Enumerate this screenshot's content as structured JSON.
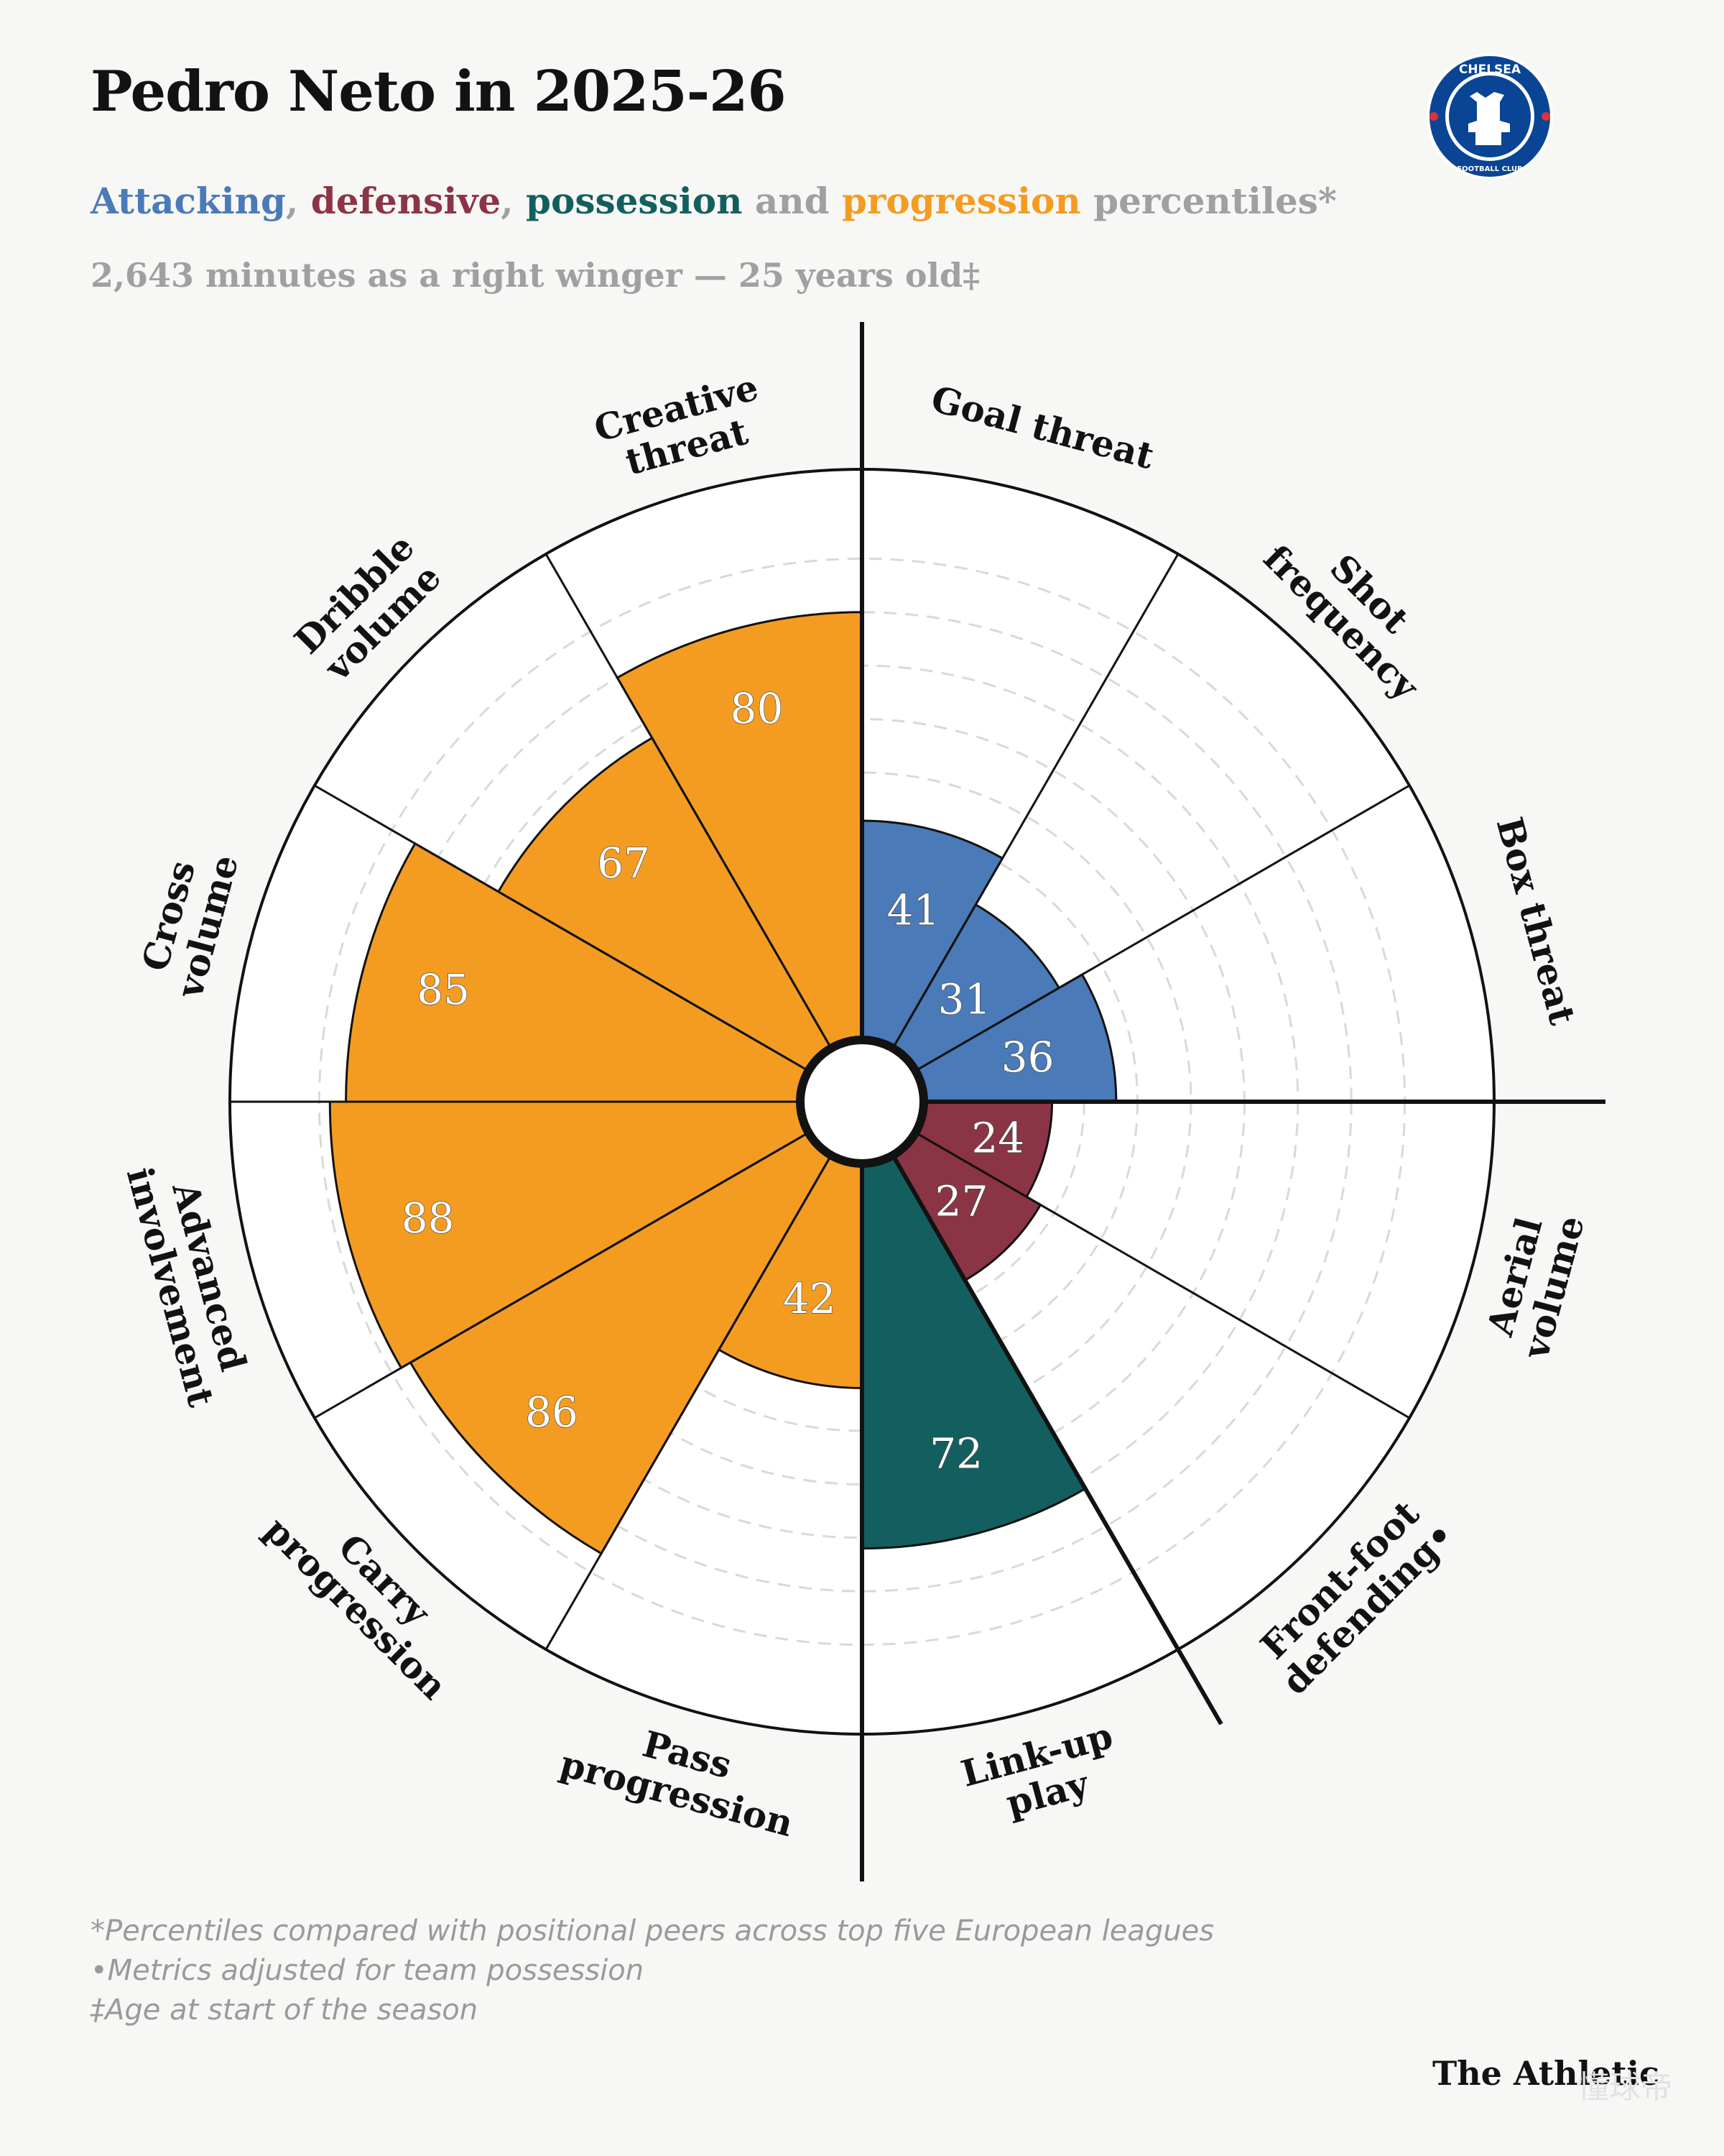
{
  "header": {
    "title": "Pedro Neto in 2025-26",
    "subtitle_parts": [
      {
        "text": "Attacking",
        "color": "#4a7ab8"
      },
      {
        "text": ", ",
        "color": "#a0a0a0"
      },
      {
        "text": "defensive",
        "color": "#8b3445"
      },
      {
        "text": ", ",
        "color": "#a0a0a0"
      },
      {
        "text": "possession",
        "color": "#135f5f"
      },
      {
        "text": " and ",
        "color": "#a0a0a0"
      },
      {
        "text": "progression",
        "color": "#f49c22"
      },
      {
        "text": " percentiles*",
        "color": "#a0a0a0"
      }
    ],
    "meta": "2,643 minutes as a right winger — 25 years old‡"
  },
  "crest": {
    "icon": "chelsea-crest-icon",
    "top_text": "CHELSEA",
    "bottom_text": "FOOTBALL CLUB"
  },
  "colors": {
    "attacking": "#4a7ab8",
    "defensive": "#8b3445",
    "possession": "#135f5f",
    "progression": "#f49c22",
    "background": "#f7f7f5",
    "ring_fill": "#ffffff"
  },
  "chart_data": {
    "type": "polar-bar",
    "scale": [
      0,
      100
    ],
    "gridlines": [
      10,
      20,
      30,
      40,
      50,
      60,
      70,
      80,
      90
    ],
    "start": "top, clockwise",
    "metrics": [
      {
        "label": "Goal threat",
        "value": 41,
        "group": "attacking"
      },
      {
        "label": "Shot frequency",
        "value": 31,
        "group": "attacking"
      },
      {
        "label": "Box threat",
        "value": 36,
        "group": "attacking"
      },
      {
        "label": "Aerial volume",
        "value": 24,
        "group": "defensive"
      },
      {
        "label": "Front-foot defending•",
        "value": 27,
        "group": "defensive"
      },
      {
        "label": "Link-up play",
        "value": 72,
        "group": "possession"
      },
      {
        "label": "Pass progression",
        "value": 42,
        "group": "progression"
      },
      {
        "label": "Carry progression",
        "value": 86,
        "group": "progression"
      },
      {
        "label": "Advanced involvement",
        "value": 88,
        "group": "progression"
      },
      {
        "label": "Cross volume",
        "value": 85,
        "group": "progression"
      },
      {
        "label": "Dribble volume",
        "value": 67,
        "group": "progression"
      },
      {
        "label": "Creative threat",
        "value": 80,
        "group": "progression"
      }
    ]
  },
  "footnotes": [
    "*Percentiles compared with positional peers across top five European leagues",
    "•Metrics adjusted for team possession",
    "‡Age at start of the season"
  ],
  "brand": "The Athletic",
  "watermark": "懂球帝"
}
